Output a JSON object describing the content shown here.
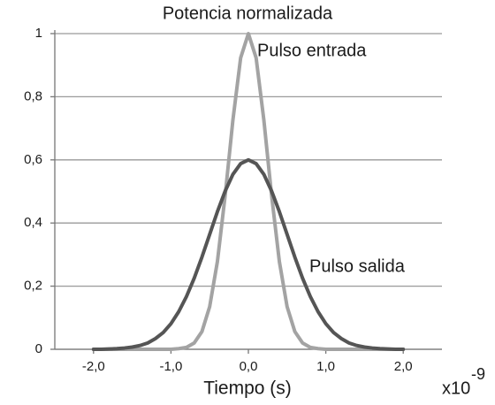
{
  "chart_data": {
    "type": "line",
    "title": "Potencia normalizada",
    "xlabel": "Tiempo (s)",
    "xlabel_multiplier": {
      "base": "x10",
      "exponent": "-9"
    },
    "x": [
      -2.0,
      -1.9,
      -1.8,
      -1.7,
      -1.6,
      -1.5,
      -1.4,
      -1.3,
      -1.2,
      -1.1,
      -1.0,
      -0.9,
      -0.8,
      -0.7,
      -0.6,
      -0.5,
      -0.4,
      -0.3,
      -0.2,
      -0.1,
      0.0,
      0.1,
      0.2,
      0.3,
      0.4,
      0.5,
      0.6,
      0.7,
      0.8,
      0.9,
      1.0,
      1.1,
      1.2,
      1.3,
      1.4,
      1.5,
      1.6,
      1.7,
      1.8,
      1.9,
      2.0
    ],
    "series": [
      {
        "name": "Pulso entrada",
        "color": "#a3a3a3",
        "values": [
          0,
          0,
          0,
          0,
          0,
          0,
          0,
          0,
          0,
          0,
          0,
          0.002,
          0.006,
          0.02,
          0.056,
          0.135,
          0.278,
          0.487,
          0.726,
          0.923,
          1,
          0.923,
          0.726,
          0.487,
          0.278,
          0.135,
          0.056,
          0.02,
          0.006,
          0.002,
          0,
          0,
          0,
          0,
          0,
          0,
          0,
          0,
          0,
          0,
          0
        ]
      },
      {
        "name": "Pulso salida",
        "color": "#555555",
        "values": [
          0,
          0,
          0.001,
          0.002,
          0.004,
          0.007,
          0.012,
          0.02,
          0.034,
          0.053,
          0.081,
          0.119,
          0.167,
          0.225,
          0.292,
          0.364,
          0.436,
          0.501,
          0.554,
          0.588,
          0.6,
          0.588,
          0.554,
          0.501,
          0.436,
          0.364,
          0.292,
          0.225,
          0.167,
          0.119,
          0.081,
          0.053,
          0.034,
          0.02,
          0.012,
          0.007,
          0.004,
          0.002,
          0.001,
          0,
          0
        ]
      }
    ],
    "xlim": [
      -2.5,
      2.5
    ],
    "xticks": [
      {
        "value": -2.0,
        "label": "-2,0"
      },
      {
        "value": -1.0,
        "label": "-1,0"
      },
      {
        "value": 0.0,
        "label": "0,0"
      },
      {
        "value": 1.0,
        "label": "1,0"
      },
      {
        "value": 2.0,
        "label": "2,0"
      }
    ],
    "ylim": [
      0,
      1
    ],
    "yticks": [
      0,
      {
        "value": 0.2,
        "label": "0,2"
      },
      {
        "value": 0.4,
        "label": "0,4"
      },
      {
        "value": 0.6,
        "label": "0,6"
      },
      {
        "value": 0.8,
        "label": "0,8"
      },
      1
    ],
    "grid": true
  }
}
